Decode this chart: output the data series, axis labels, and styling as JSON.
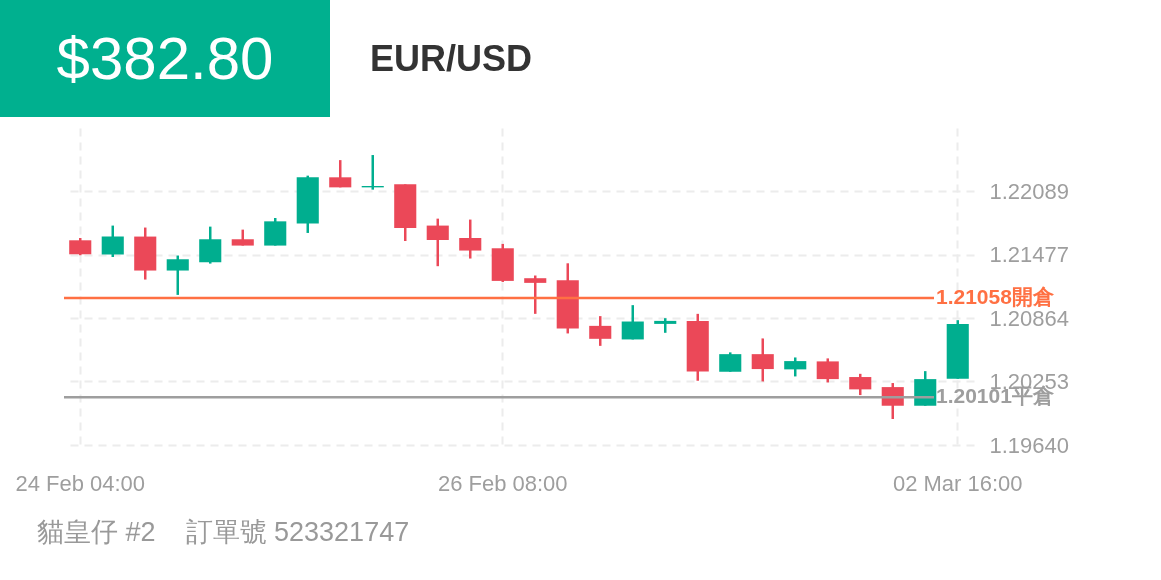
{
  "chart_data": {
    "type": "candlestick",
    "title": "EUR/USD",
    "annotations": [
      "$382.80",
      "貓皇仔 #2    訂單號 523321747"
    ],
    "categories": [
      "24 Feb  04:00",
      null,
      null,
      null,
      null,
      null,
      null,
      null,
      null,
      null,
      null,
      null,
      null,
      "26 Feb  08:00",
      null,
      null,
      null,
      null,
      null,
      null,
      null,
      null,
      null,
      null,
      null,
      null,
      null,
      "02 Mar  16:00"
    ],
    "ohlc": [
      [
        1.21616,
        1.21638,
        1.21472,
        1.21481
      ],
      [
        1.21478,
        1.21758,
        1.21455,
        1.21652
      ],
      [
        1.21652,
        1.21739,
        1.21237,
        1.21324
      ],
      [
        1.21324,
        1.21469,
        1.21089,
        1.21433
      ],
      [
        1.21404,
        1.21748,
        1.21391,
        1.21626
      ],
      [
        1.21626,
        1.21719,
        1.21565,
        1.21565
      ],
      [
        1.21565,
        1.21831,
        1.21565,
        1.21799
      ],
      [
        1.21777,
        1.2224,
        1.21687,
        1.22224
      ],
      [
        1.22224,
        1.2239,
        1.22127,
        1.22127
      ],
      [
        1.22127,
        1.22439,
        1.22105,
        1.2214
      ],
      [
        1.22156,
        1.22156,
        1.21609,
        1.21735
      ],
      [
        1.21758,
        1.21825,
        1.21366,
        1.21619
      ],
      [
        1.21638,
        1.21816,
        1.2144,
        1.21517
      ],
      [
        1.21539,
        1.21581,
        1.21214,
        1.21224
      ],
      [
        1.2125,
        1.21276,
        1.20906,
        1.21205
      ],
      [
        1.21231,
        1.21394,
        1.20717,
        1.20765
      ],
      [
        1.2079,
        1.20884,
        1.20597,
        1.20665
      ],
      [
        1.20659,
        1.2099,
        1.20659,
        1.20832
      ],
      [
        1.20809,
        1.20864,
        1.20723,
        1.20838
      ],
      [
        1.20838,
        1.20906,
        1.2026,
        1.2035
      ],
      [
        1.20347,
        1.20534,
        1.20347,
        1.20517
      ],
      [
        1.20517,
        1.20669,
        1.20254,
        1.20373
      ],
      [
        1.2037,
        1.20485,
        1.20302,
        1.2045
      ],
      [
        1.20447,
        1.20476,
        1.20244,
        1.20276
      ],
      [
        1.20296,
        1.20327,
        1.20122,
        1.20177
      ],
      [
        1.20199,
        1.20238,
        1.19891,
        1.20019
      ],
      [
        1.20019,
        1.20353,
        1.20019,
        1.20276
      ],
      [
        1.20279,
        1.20845,
        1.20279,
        1.20809
      ]
    ],
    "colors": [
      "#eb4858",
      "#00ae8f",
      "#eb4858",
      "#00ae8f",
      "#00ae8f",
      "#eb4858",
      "#00ae8f",
      "#00ae8f",
      "#eb4858",
      "#00ae8f",
      "#eb4858",
      "#eb4858",
      "#eb4858",
      "#eb4858",
      "#eb4858",
      "#eb4858",
      "#eb4858",
      "#00ae8f",
      "#00ae8f",
      "#eb4858",
      "#00ae8f",
      "#eb4858",
      "#00ae8f",
      "#eb4858",
      "#eb4858",
      "#eb4858",
      "#00ae8f",
      "#00ae8f"
    ],
    "ylim": [
      1.1964,
      1.227
    ],
    "yticks": [
      {
        "value": 1.1964,
        "label": "1.19640"
      },
      1.20253,
      1.20864,
      1.21477,
      1.22089
    ],
    "grid": true,
    "ref_lines": [
      {
        "axis": "y",
        "value": 1.21058,
        "label": "1.21058開倉",
        "color": "#ff7043"
      },
      {
        "axis": "y",
        "value": 1.20101,
        "label": "1.20101平倉",
        "color": "#9e9e9e"
      }
    ]
  }
}
